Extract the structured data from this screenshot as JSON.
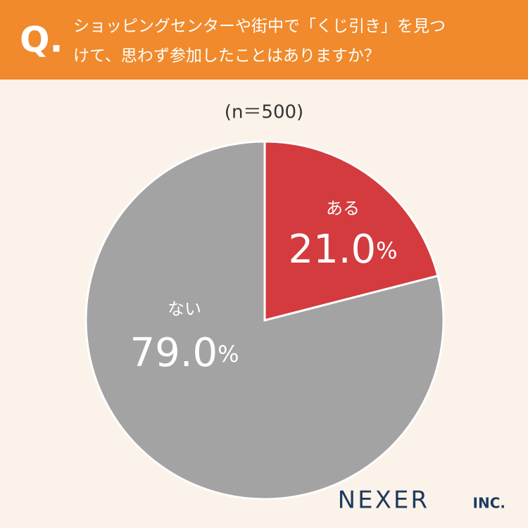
{
  "question_prefix": "Q.",
  "logo": {
    "name": "NEXER",
    "suffix": "INC."
  },
  "chart_data": {
    "type": "pie",
    "title": [
      "ショッピングセンターや街中で「くじ引き」を見つ",
      "けて、思わず参加したことはありますか？"
    ],
    "subtitle": "(n＝500)",
    "categories": [
      "ある",
      "ない"
    ],
    "values": [
      21.0,
      79.0
    ],
    "value_labels": [
      "21.0%",
      "79.0%"
    ],
    "colors": [
      "#d33b3e",
      "#a3a3a3"
    ]
  }
}
